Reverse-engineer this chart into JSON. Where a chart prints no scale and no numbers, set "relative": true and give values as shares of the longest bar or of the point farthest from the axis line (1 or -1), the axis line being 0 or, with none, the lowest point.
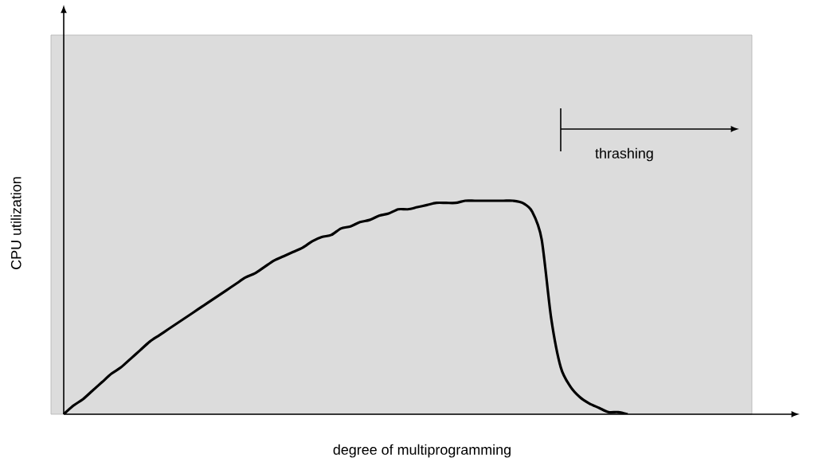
{
  "chart_data": {
    "type": "line",
    "relative": true,
    "xlabel": "degree of multiprogramming",
    "ylabel": "CPU utilization",
    "annotations": [
      "thrashing"
    ],
    "color": "#000000",
    "categories": [
      null,
      null,
      null,
      null,
      null,
      null,
      null,
      null,
      null,
      null,
      null,
      null,
      null,
      null,
      null,
      null,
      null,
      null,
      null,
      null,
      null,
      null,
      null,
      null,
      null,
      null,
      null,
      null,
      null,
      null,
      null,
      null,
      null,
      null,
      null,
      null,
      null,
      null,
      null,
      null,
      null,
      null,
      null,
      null,
      null,
      null,
      null,
      null,
      null,
      null,
      null,
      null,
      null,
      null,
      null,
      null,
      null,
      null,
      null,
      null
    ],
    "values": [
      0,
      0.04,
      0.07,
      0.11,
      0.15,
      0.19,
      0.22,
      0.26,
      0.3,
      0.34,
      0.37,
      0.4,
      0.43,
      0.46,
      0.49,
      0.52,
      0.55,
      0.58,
      0.61,
      0.64,
      0.66,
      0.69,
      0.72,
      0.74,
      0.76,
      0.78,
      0.81,
      0.83,
      0.84,
      0.87,
      0.88,
      0.9,
      0.91,
      0.93,
      0.94,
      0.96,
      0.96,
      0.97,
      0.98,
      0.99,
      0.99,
      0.99,
      1,
      1,
      1,
      1,
      1,
      1,
      0.99,
      0.95,
      0.82,
      0.45,
      0.22,
      0.13,
      0.08,
      0.05,
      0.03,
      0.01,
      0.01,
      0
    ]
  }
}
